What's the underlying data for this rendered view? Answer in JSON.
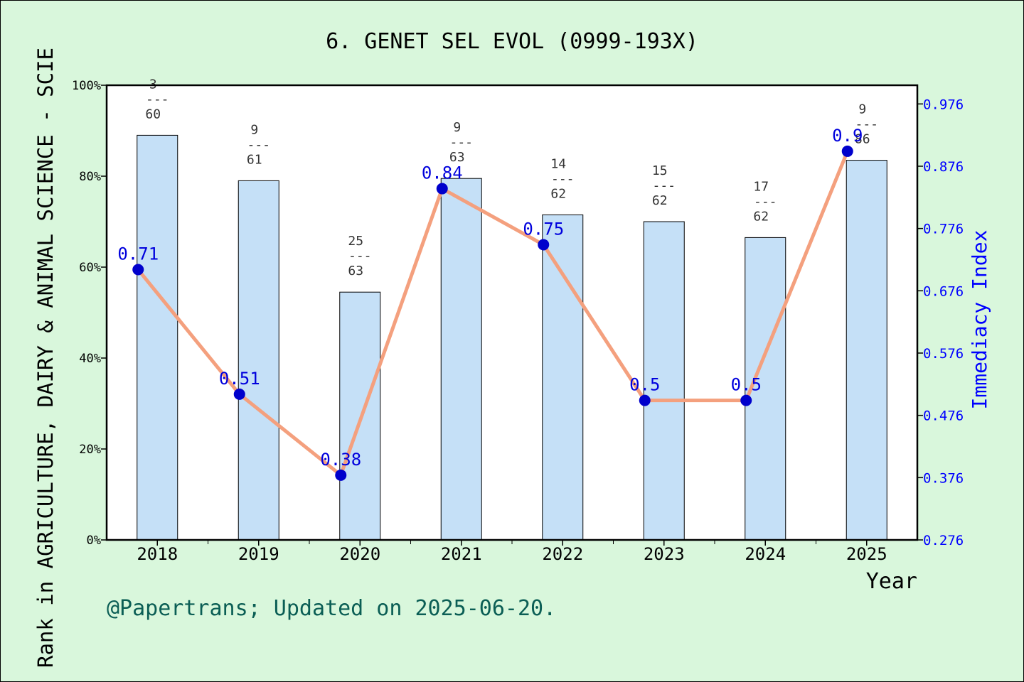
{
  "chart_data": {
    "type": "bar+line",
    "title": "6. GENET SEL EVOL (0999-193X)",
    "xlabel": "Year",
    "ylabel_left": "Rank in AGRICULTURE, DAIRY & ANIMAL SCIENCE - SCIE",
    "ylabel_right": "Immediacy Index",
    "footer": "@Papertrans; Updated on 2025-06-20.",
    "categories": [
      "2018",
      "2019",
      "2020",
      "2021",
      "2022",
      "2023",
      "2024",
      "2025"
    ],
    "left_axis": {
      "min": 0,
      "max": 100,
      "ticks": [
        "0%",
        "20%",
        "40%",
        "60%",
        "80%",
        "100%"
      ]
    },
    "right_axis": {
      "min": 0.276,
      "max": 1.006,
      "ticks": [
        "0.276",
        "0.376",
        "0.476",
        "0.576",
        "0.676",
        "0.776",
        "0.876",
        "0.976"
      ]
    },
    "bars": {
      "values": [
        89,
        79,
        54.5,
        79.5,
        71.5,
        70,
        66.5,
        83.5
      ],
      "labels": [
        {
          "rank": "3",
          "total": "60"
        },
        {
          "rank": "9",
          "total": "61"
        },
        {
          "rank": "25",
          "total": "63"
        },
        {
          "rank": "9",
          "total": "63"
        },
        {
          "rank": "14",
          "total": "62"
        },
        {
          "rank": "15",
          "total": "62"
        },
        {
          "rank": "17",
          "total": "62"
        },
        {
          "rank": "9",
          "total": "86"
        }
      ]
    },
    "line": {
      "values": [
        0.71,
        0.51,
        0.38,
        0.84,
        0.75,
        0.5,
        0.5,
        0.9
      ],
      "labels": [
        "0.71",
        "0.51",
        "0.38",
        "0.84",
        "0.75",
        "0.5",
        "0.5",
        "0.9"
      ]
    },
    "colors": {
      "background": "#d9f7dc",
      "plot_bg": "#ffffff",
      "bar_fill": "#c5e0f7",
      "line": "#f4a07e",
      "marker": "#0000cc",
      "right_axis": "#0000ff",
      "footer": "#0b5e55"
    }
  }
}
